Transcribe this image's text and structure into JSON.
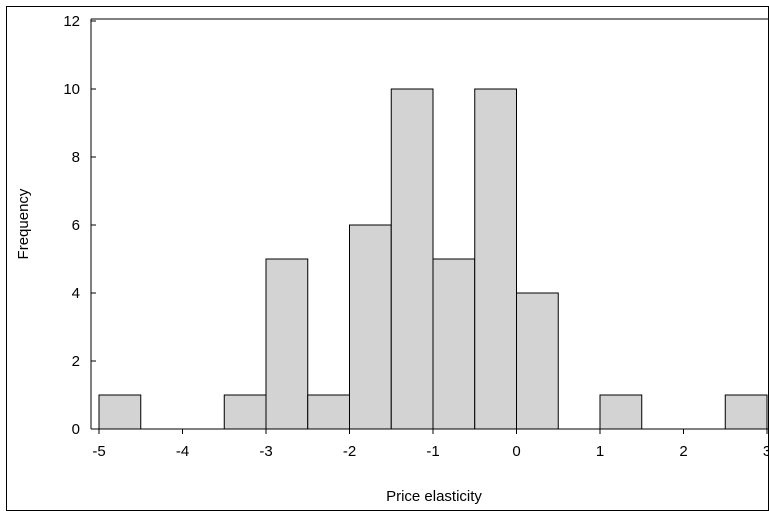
{
  "chart_data": {
    "type": "bar",
    "subtype": "histogram",
    "title": "",
    "xlabel": "Price elasticity",
    "ylabel": "Frequency",
    "xlim": [
      -5.0,
      3.0
    ],
    "ylim": [
      0,
      12
    ],
    "x_ticks": [
      -5,
      -4,
      -3,
      -2,
      -1,
      0,
      1,
      2,
      3
    ],
    "y_ticks": [
      0,
      2,
      4,
      6,
      8,
      10,
      12
    ],
    "bin_width": 0.5,
    "bins": [
      {
        "x0": -5.0,
        "x1": -4.5,
        "count": 1
      },
      {
        "x0": -3.5,
        "x1": -3.0,
        "count": 1
      },
      {
        "x0": -3.0,
        "x1": -2.5,
        "count": 5
      },
      {
        "x0": -2.5,
        "x1": -2.0,
        "count": 1
      },
      {
        "x0": -2.0,
        "x1": -1.5,
        "count": 6
      },
      {
        "x0": -1.5,
        "x1": -1.0,
        "count": 10
      },
      {
        "x0": -1.0,
        "x1": -0.5,
        "count": 5
      },
      {
        "x0": -0.5,
        "x1": 0.0,
        "count": 10
      },
      {
        "x0": 0.0,
        "x1": 0.5,
        "count": 4
      },
      {
        "x0": 1.0,
        "x1": 1.5,
        "count": 1
      },
      {
        "x0": 2.5,
        "x1": 3.0,
        "count": 1
      }
    ],
    "grid": false,
    "colors": {
      "bar_fill": "#d3d3d3",
      "bar_stroke": "#000000"
    }
  }
}
